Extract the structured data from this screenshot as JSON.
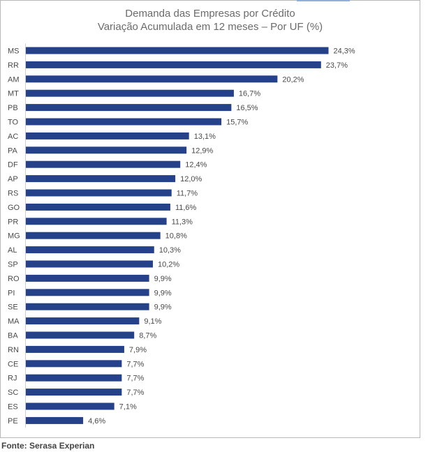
{
  "chart_data": {
    "type": "bar",
    "orientation": "horizontal",
    "title": "Demanda das Empresas por Crédito",
    "subtitle": "Variação Acumulada em 12 meses – Por UF (%)",
    "categories": [
      "MS",
      "RR",
      "AM",
      "MT",
      "PB",
      "TO",
      "AC",
      "PA",
      "DF",
      "AP",
      "RS",
      "GO",
      "PR",
      "MG",
      "AL",
      "SP",
      "RO",
      "PI",
      "SE",
      "MA",
      "BA",
      "RN",
      "CE",
      "RJ",
      "SC",
      "ES",
      "PE"
    ],
    "values": [
      24.3,
      23.7,
      20.2,
      16.7,
      16.5,
      15.7,
      13.1,
      12.9,
      12.4,
      12.0,
      11.7,
      11.6,
      11.3,
      10.8,
      10.3,
      10.2,
      9.9,
      9.9,
      9.9,
      9.1,
      8.7,
      7.9,
      7.7,
      7.7,
      7.7,
      7.1,
      4.6
    ],
    "value_labels": [
      "24,3%",
      "23,7%",
      "20,2%",
      "16,7%",
      "16,5%",
      "15,7%",
      "13,1%",
      "12,9%",
      "12,4%",
      "12,0%",
      "11,7%",
      "11,6%",
      "11,3%",
      "10,8%",
      "10,3%",
      "10,2%",
      "9,9%",
      "9,9%",
      "9,9%",
      "9,1%",
      "8,7%",
      "7,9%",
      "7,7%",
      "7,7%",
      "7,7%",
      "7,1%",
      "4,6%"
    ],
    "bar_color": "#24418a",
    "xlim": [
      0,
      25
    ],
    "grid": false,
    "legend": "none"
  },
  "source": "Fonte: Serasa Experian"
}
